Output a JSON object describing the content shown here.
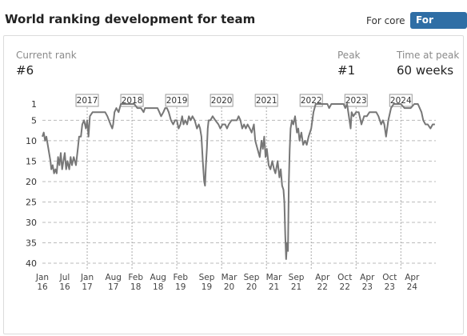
{
  "header": {
    "title": "World ranking development for team",
    "toggle_core": "For core",
    "toggle_team": "For team"
  },
  "stats": {
    "current_rank_label": "Current rank",
    "current_rank_value": "#6",
    "peak_label": "Peak",
    "peak_value": "#1",
    "time_at_peak_label": "Time at peak",
    "time_at_peak_value": "60 weeks"
  },
  "colors": {
    "accent": "#2f6ea5",
    "line": "#777777",
    "grid": "#bbbbbb"
  },
  "chart_data": {
    "type": "line",
    "title": "",
    "xlabel": "",
    "ylabel": "",
    "y_inverted": true,
    "ylim": [
      1,
      40
    ],
    "y_ticks": [
      1,
      5,
      10,
      15,
      20,
      25,
      30,
      35,
      40
    ],
    "grid": "horizontal dashed",
    "x_ticks": [
      {
        "t": 2016.0,
        "m": "Jan",
        "y": "16"
      },
      {
        "t": 2016.5,
        "m": "Jul",
        "y": "16"
      },
      {
        "t": 2017.0,
        "m": "Jan",
        "y": "17"
      },
      {
        "t": 2017.583,
        "m": "Aug",
        "y": "17"
      },
      {
        "t": 2018.083,
        "m": "Feb",
        "y": "18"
      },
      {
        "t": 2018.583,
        "m": "Aug",
        "y": "18"
      },
      {
        "t": 2019.083,
        "m": "Feb",
        "y": "19"
      },
      {
        "t": 2019.667,
        "m": "Sep",
        "y": "19"
      },
      {
        "t": 2020.167,
        "m": "Mar",
        "y": "20"
      },
      {
        "t": 2020.667,
        "m": "Sep",
        "y": "20"
      },
      {
        "t": 2021.167,
        "m": "Mar",
        "y": "21"
      },
      {
        "t": 2021.667,
        "m": "Sep",
        "y": "21"
      },
      {
        "t": 2022.25,
        "m": "Apr",
        "y": "22"
      },
      {
        "t": 2022.75,
        "m": "Oct",
        "y": "22"
      },
      {
        "t": 2023.25,
        "m": "Apr",
        "y": "23"
      },
      {
        "t": 2023.75,
        "m": "Oct",
        "y": "23"
      },
      {
        "t": 2024.25,
        "m": "Apr",
        "y": "24"
      }
    ],
    "year_markers": [
      {
        "t": 2017.0,
        "label": "2017"
      },
      {
        "t": 2018.0,
        "label": "2018"
      },
      {
        "t": 2019.0,
        "label": "2019"
      },
      {
        "t": 2020.0,
        "label": "2020"
      },
      {
        "t": 2021.0,
        "label": "2021"
      },
      {
        "t": 2022.0,
        "label": "2022"
      },
      {
        "t": 2023.0,
        "label": "2023"
      },
      {
        "t": 2024.0,
        "label": "2024"
      }
    ],
    "series": [
      {
        "points": [
          [
            2016.0,
            9
          ],
          [
            2016.03,
            8
          ],
          [
            2016.06,
            10
          ],
          [
            2016.09,
            9
          ],
          [
            2016.12,
            11
          ],
          [
            2016.15,
            13
          ],
          [
            2016.18,
            15
          ],
          [
            2016.2,
            17
          ],
          [
            2016.23,
            16
          ],
          [
            2016.26,
            18
          ],
          [
            2016.29,
            17
          ],
          [
            2016.32,
            18
          ],
          [
            2016.35,
            14
          ],
          [
            2016.38,
            16
          ],
          [
            2016.41,
            13
          ],
          [
            2016.44,
            17
          ],
          [
            2016.47,
            15
          ],
          [
            2016.5,
            13
          ],
          [
            2016.53,
            17
          ],
          [
            2016.56,
            15
          ],
          [
            2016.6,
            17
          ],
          [
            2016.63,
            14
          ],
          [
            2016.66,
            16
          ],
          [
            2016.7,
            14
          ],
          [
            2016.75,
            16
          ],
          [
            2016.79,
            12
          ],
          [
            2016.82,
            9
          ],
          [
            2016.86,
            9
          ],
          [
            2016.89,
            6
          ],
          [
            2016.93,
            5
          ],
          [
            2016.97,
            7
          ],
          [
            2017.0,
            5
          ],
          [
            2017.03,
            9
          ],
          [
            2017.06,
            4
          ],
          [
            2017.12,
            3
          ],
          [
            2017.2,
            3
          ],
          [
            2017.3,
            3
          ],
          [
            2017.4,
            3
          ],
          [
            2017.45,
            4
          ],
          [
            2017.52,
            6
          ],
          [
            2017.56,
            7
          ],
          [
            2017.58,
            6
          ],
          [
            2017.61,
            3
          ],
          [
            2017.65,
            2
          ],
          [
            2017.7,
            3
          ],
          [
            2017.75,
            1
          ],
          [
            2017.85,
            1
          ],
          [
            2017.95,
            1
          ],
          [
            2018.05,
            1
          ],
          [
            2018.12,
            2
          ],
          [
            2018.2,
            2
          ],
          [
            2018.26,
            3
          ],
          [
            2018.29,
            2
          ],
          [
            2018.35,
            2
          ],
          [
            2018.45,
            2
          ],
          [
            2018.52,
            2
          ],
          [
            2018.57,
            2
          ],
          [
            2018.61,
            3
          ],
          [
            2018.65,
            4
          ],
          [
            2018.7,
            3
          ],
          [
            2018.74,
            2
          ],
          [
            2018.78,
            2
          ],
          [
            2018.82,
            3
          ],
          [
            2018.87,
            5
          ],
          [
            2018.92,
            6
          ],
          [
            2018.96,
            5
          ],
          [
            2019.0,
            5
          ],
          [
            2019.04,
            7
          ],
          [
            2019.08,
            6
          ],
          [
            2019.12,
            4
          ],
          [
            2019.15,
            6
          ],
          [
            2019.19,
            5
          ],
          [
            2019.23,
            6
          ],
          [
            2019.27,
            4
          ],
          [
            2019.31,
            5
          ],
          [
            2019.35,
            4
          ],
          [
            2019.4,
            5
          ],
          [
            2019.45,
            7
          ],
          [
            2019.49,
            6
          ],
          [
            2019.52,
            7
          ],
          [
            2019.55,
            9
          ],
          [
            2019.58,
            15
          ],
          [
            2019.61,
            20
          ],
          [
            2019.63,
            21
          ],
          [
            2019.65,
            16
          ],
          [
            2019.67,
            12
          ],
          [
            2019.69,
            7
          ],
          [
            2019.71,
            5
          ],
          [
            2019.75,
            5
          ],
          [
            2019.8,
            4
          ],
          [
            2019.86,
            5
          ],
          [
            2019.93,
            6
          ],
          [
            2019.97,
            7
          ],
          [
            2020.02,
            6
          ],
          [
            2020.08,
            6
          ],
          [
            2020.12,
            7
          ],
          [
            2020.16,
            6
          ],
          [
            2020.22,
            5
          ],
          [
            2020.28,
            5
          ],
          [
            2020.34,
            5
          ],
          [
            2020.38,
            4
          ],
          [
            2020.42,
            5
          ],
          [
            2020.46,
            7
          ],
          [
            2020.5,
            6
          ],
          [
            2020.54,
            7
          ],
          [
            2020.58,
            6
          ],
          [
            2020.63,
            7
          ],
          [
            2020.67,
            8
          ],
          [
            2020.72,
            6
          ],
          [
            2020.75,
            10
          ],
          [
            2020.8,
            12
          ],
          [
            2020.85,
            14
          ],
          [
            2020.89,
            10
          ],
          [
            2020.92,
            12
          ],
          [
            2020.95,
            9
          ],
          [
            2020.98,
            14
          ],
          [
            2021.01,
            12
          ],
          [
            2021.05,
            16
          ],
          [
            2021.09,
            17
          ],
          [
            2021.13,
            15
          ],
          [
            2021.17,
            17
          ],
          [
            2021.2,
            18
          ],
          [
            2021.25,
            15
          ],
          [
            2021.29,
            19
          ],
          [
            2021.32,
            17
          ],
          [
            2021.35,
            21
          ],
          [
            2021.38,
            22
          ],
          [
            2021.4,
            25
          ],
          [
            2021.42,
            33
          ],
          [
            2021.44,
            39
          ],
          [
            2021.46,
            35
          ],
          [
            2021.48,
            37
          ],
          [
            2021.5,
            20
          ],
          [
            2021.52,
            12
          ],
          [
            2021.54,
            7
          ],
          [
            2021.57,
            5
          ],
          [
            2021.6,
            6
          ],
          [
            2021.64,
            4
          ],
          [
            2021.68,
            8
          ],
          [
            2021.71,
            7
          ],
          [
            2021.74,
            10
          ],
          [
            2021.78,
            8
          ],
          [
            2021.82,
            11
          ],
          [
            2021.86,
            10
          ],
          [
            2021.9,
            11
          ],
          [
            2021.94,
            9
          ],
          [
            2022.0,
            7
          ],
          [
            2022.05,
            3
          ],
          [
            2022.1,
            1
          ],
          [
            2022.18,
            1
          ],
          [
            2022.28,
            1
          ],
          [
            2022.36,
            1
          ],
          [
            2022.4,
            2
          ],
          [
            2022.45,
            1
          ],
          [
            2022.55,
            1
          ],
          [
            2022.65,
            1
          ],
          [
            2022.72,
            1
          ],
          [
            2022.76,
            2
          ],
          [
            2022.8,
            1
          ],
          [
            2022.84,
            4
          ],
          [
            2022.88,
            7
          ],
          [
            2022.9,
            3
          ],
          [
            2022.94,
            4
          ],
          [
            2023.0,
            3
          ],
          [
            2023.06,
            3
          ],
          [
            2023.12,
            6
          ],
          [
            2023.18,
            4
          ],
          [
            2023.24,
            4
          ],
          [
            2023.3,
            3
          ],
          [
            2023.38,
            3
          ],
          [
            2023.45,
            3
          ],
          [
            2023.5,
            4
          ],
          [
            2023.56,
            6
          ],
          [
            2023.6,
            5
          ],
          [
            2023.63,
            6
          ],
          [
            2023.67,
            9
          ],
          [
            2023.72,
            5
          ],
          [
            2023.78,
            2
          ],
          [
            2023.84,
            1
          ],
          [
            2023.92,
            1
          ],
          [
            2024.0,
            1
          ],
          [
            2024.08,
            2
          ],
          [
            2024.15,
            2
          ],
          [
            2024.22,
            2
          ],
          [
            2024.3,
            1
          ],
          [
            2024.38,
            1
          ],
          [
            2024.46,
            3
          ],
          [
            2024.5,
            5
          ],
          [
            2024.55,
            6
          ],
          [
            2024.6,
            6
          ],
          [
            2024.66,
            7
          ],
          [
            2024.71,
            6
          ],
          [
            2024.76,
            6
          ]
        ]
      }
    ]
  }
}
